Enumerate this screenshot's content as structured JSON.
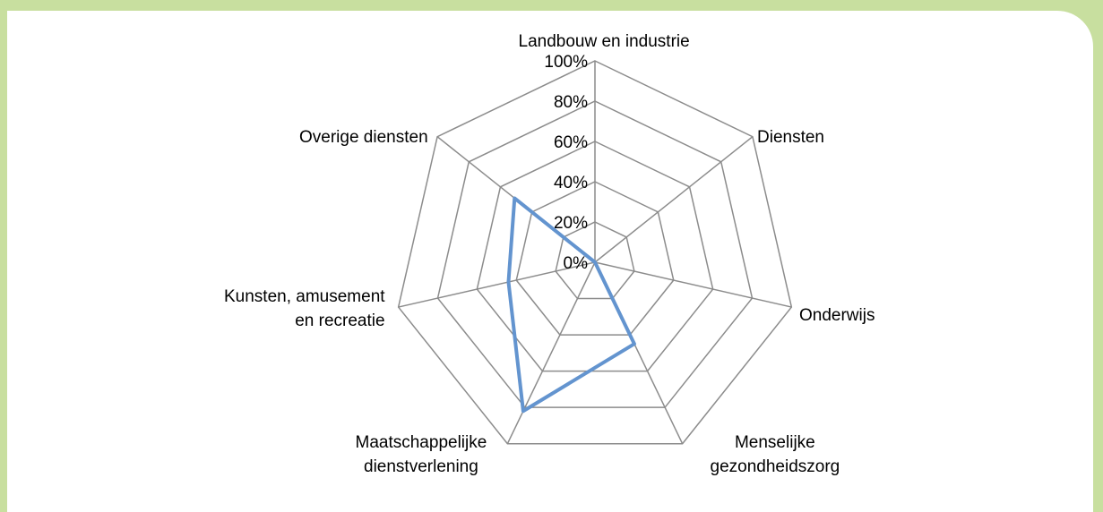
{
  "chart_data": {
    "type": "radar",
    "categories": [
      "Landbouw en industrie",
      "Diensten",
      "Onderwijs",
      "Menselijke\ngezondheidszorg",
      "Maatschappelijke\ndienstverlening",
      "Kunsten, amusement\nen recreatie",
      "Overige diensten"
    ],
    "values": [
      0,
      0,
      0,
      45,
      82,
      44,
      51
    ],
    "color": "#6394cf",
    "ylim": [
      0,
      100
    ],
    "yticks": [
      {
        "value": 0,
        "label": "0%"
      },
      {
        "value": 20,
        "label": "20%"
      },
      {
        "value": 40,
        "label": "40%"
      },
      {
        "value": 60,
        "label": "60%"
      },
      {
        "value": 80,
        "label": "80%"
      },
      {
        "value": 100,
        "label": "100%"
      }
    ],
    "grid": true
  }
}
